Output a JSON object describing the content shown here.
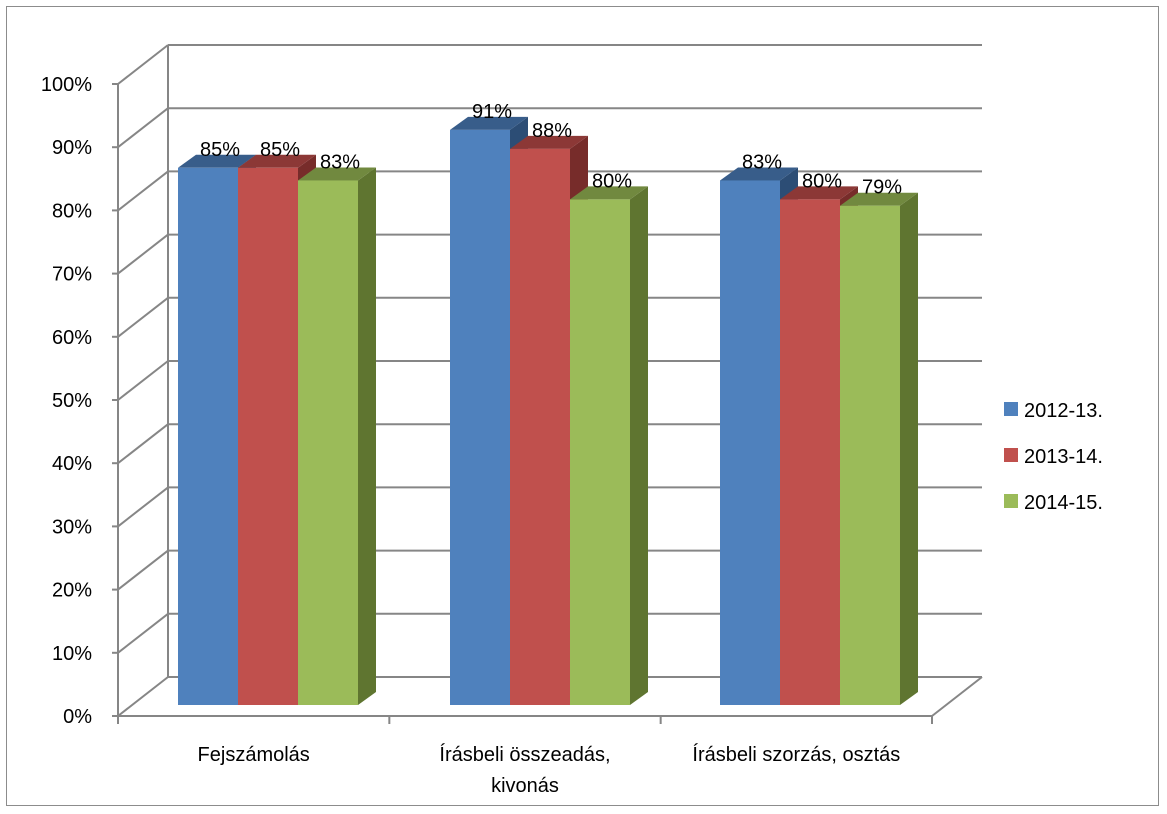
{
  "chart_data": {
    "type": "bar",
    "title": "",
    "xlabel": "",
    "ylabel": "",
    "ylim": [
      0,
      100
    ],
    "yticks": [
      "0%",
      "10%",
      "20%",
      "30%",
      "40%",
      "50%",
      "60%",
      "70%",
      "80%",
      "90%",
      "100%"
    ],
    "grid": true,
    "legend_position": "right",
    "categories": [
      [
        "Fejszámolás"
      ],
      [
        "Írásbeli összeadás,",
        "kivonás"
      ],
      [
        "Írásbeli szorzás, osztás"
      ]
    ],
    "series": [
      {
        "name": "2012-13.",
        "values": [
          85,
          91,
          83
        ],
        "labels": [
          "85%",
          "91%",
          "83%"
        ],
        "color": "#4f81bd",
        "side": "#2c4d75",
        "top": "#385d8a"
      },
      {
        "name": "2013-14.",
        "values": [
          85,
          88,
          80
        ],
        "labels": [
          "85%",
          "88%",
          "80%"
        ],
        "color": "#c0504d",
        "side": "#772c2a",
        "top": "#8c3836"
      },
      {
        "name": "2014-15.",
        "values": [
          83,
          80,
          79
        ],
        "labels": [
          "83%",
          "80%",
          "79%"
        ],
        "color": "#9bbb59",
        "side": "#5f7530",
        "top": "#71893f"
      }
    ]
  }
}
